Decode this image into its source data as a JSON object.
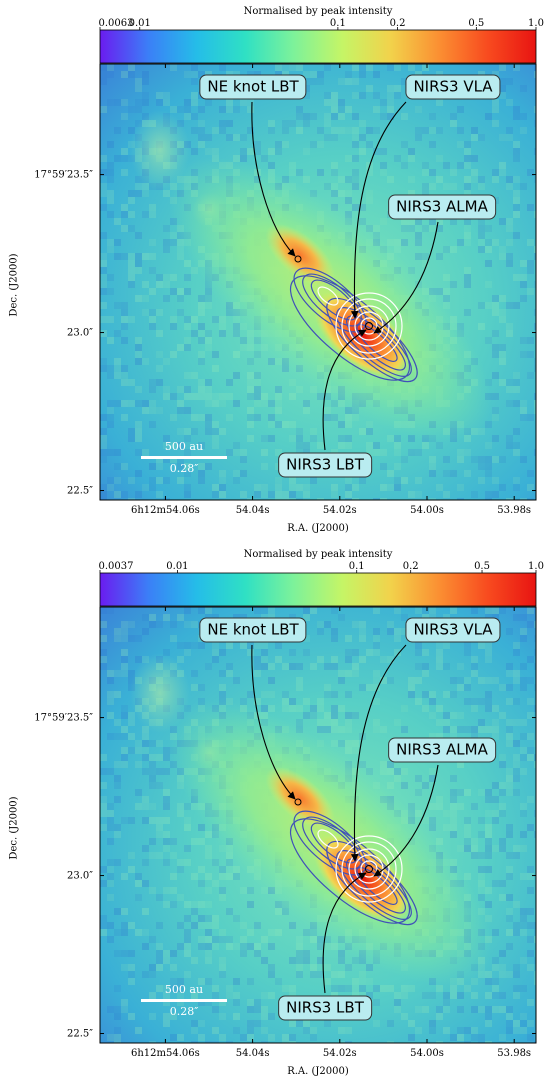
{
  "chart_data": [
    {
      "type": "heatmap",
      "colorbar": {
        "title": "Normalised by peak intensity",
        "scale": "log",
        "range": [
          0.0063,
          1.0
        ],
        "ticks": [
          {
            "value": 0.0063,
            "label": "0.0063"
          },
          {
            "value": 0.01,
            "label": "0.01"
          },
          {
            "value": 0.1,
            "label": "0.1"
          },
          {
            "value": 0.2,
            "label": "0.2"
          },
          {
            "value": 0.5,
            "label": "0.5"
          },
          {
            "value": 1.0,
            "label": "1.0"
          }
        ]
      },
      "xlabel": "R.A. (J2000)",
      "ylabel": "Dec. (J2000)",
      "xlim": [
        54.075,
        53.975
      ],
      "ylim": [
        22.47,
        23.85
      ],
      "xticks": [
        {
          "value": 54.06,
          "label": "6h12m54.06s"
        },
        {
          "value": 54.04,
          "label": "54.04s"
        },
        {
          "value": 54.02,
          "label": "54.02s"
        },
        {
          "value": 54.0,
          "label": "54.00s"
        },
        {
          "value": 53.98,
          "label": "53.98s"
        }
      ],
      "yticks": [
        {
          "value": 23.5,
          "label": "17°59′23.5″"
        },
        {
          "value": 23.0,
          "label": "23.0″"
        },
        {
          "value": 22.5,
          "label": "22.5″"
        }
      ],
      "annotations": [
        {
          "text": "NE knot LBT",
          "target": [
            54.032,
            23.25
          ]
        },
        {
          "text": "NIRS3 VLA",
          "target": [
            54.015,
            23.1
          ]
        },
        {
          "text": "NIRS3 ALMA",
          "target": [
            54.012,
            23.05
          ]
        },
        {
          "text": "NIRS3 LBT",
          "target": [
            54.016,
            23.07
          ]
        }
      ],
      "scalebar": {
        "physical": "500 au",
        "angular": "0.28″"
      }
    },
    {
      "type": "heatmap",
      "colorbar": {
        "title": "Normalised by peak intensity",
        "scale": "log",
        "range": [
          0.0037,
          1.0
        ],
        "ticks": [
          {
            "value": 0.0037,
            "label": "0.0037"
          },
          {
            "value": 0.01,
            "label": "0.01"
          },
          {
            "value": 0.1,
            "label": "0.1"
          },
          {
            "value": 0.2,
            "label": "0.2"
          },
          {
            "value": 0.5,
            "label": "0.5"
          },
          {
            "value": 1.0,
            "label": "1.0"
          }
        ]
      },
      "xlabel": "R.A. (J2000)",
      "ylabel": "Dec. (J2000)",
      "xlim": [
        54.075,
        53.975
      ],
      "ylim": [
        22.47,
        23.85
      ],
      "xticks": [
        {
          "value": 54.06,
          "label": "6h12m54.06s"
        },
        {
          "value": 54.04,
          "label": "54.04s"
        },
        {
          "value": 54.02,
          "label": "54.02s"
        },
        {
          "value": 54.0,
          "label": "54.00s"
        },
        {
          "value": 53.98,
          "label": "53.98s"
        }
      ],
      "yticks": [
        {
          "value": 23.5,
          "label": "17°59′23.5″"
        },
        {
          "value": 23.0,
          "label": "23.0″"
        },
        {
          "value": 22.5,
          "label": "22.5″"
        }
      ],
      "annotations": [
        {
          "text": "NE knot LBT",
          "target": [
            54.032,
            23.25
          ]
        },
        {
          "text": "NIRS3 VLA",
          "target": [
            54.015,
            23.1
          ]
        },
        {
          "text": "NIRS3 ALMA",
          "target": [
            54.012,
            23.05
          ]
        },
        {
          "text": "NIRS3 LBT",
          "target": [
            54.016,
            23.07
          ]
        }
      ],
      "scalebar": {
        "physical": "500 au",
        "angular": "0.28″"
      }
    }
  ]
}
